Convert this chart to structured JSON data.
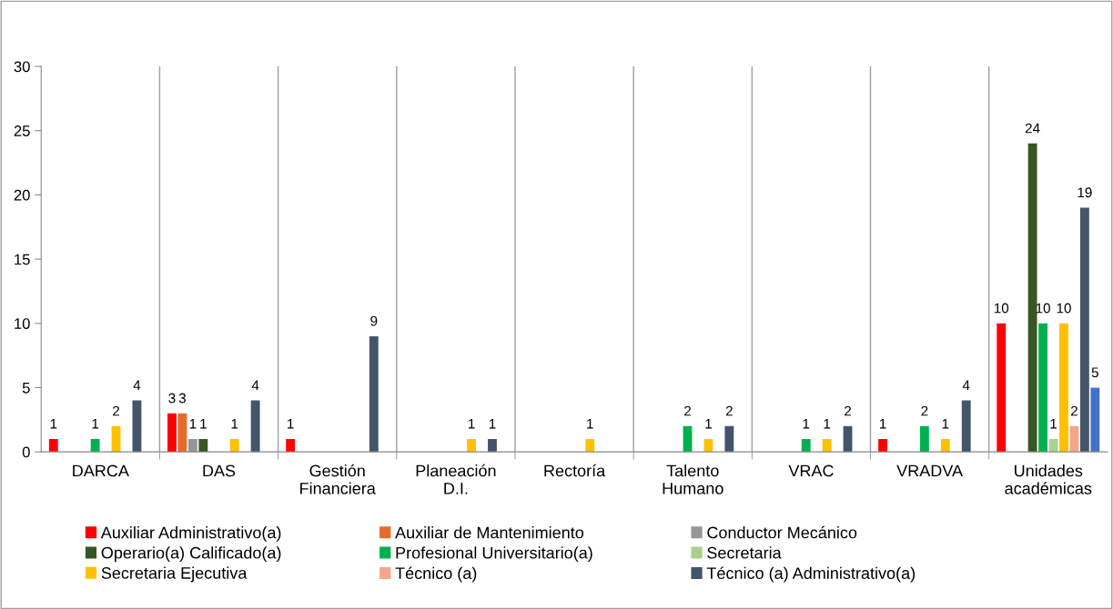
{
  "chart_data": {
    "type": "bar",
    "categories": [
      "DARCA",
      "DAS",
      "Gestión Financiera",
      "Planeación D.I.",
      "Rectoría",
      "Talento Humano",
      "VRAC",
      "VRADVA",
      "Unidades académicas"
    ],
    "series": [
      {
        "name": "Auxiliar Administrativo(a)",
        "color": "#ff0000",
        "values": [
          1,
          3,
          1,
          null,
          null,
          null,
          null,
          1,
          10
        ]
      },
      {
        "name": "Auxiliar de Mantenimiento",
        "color": "#e36c2a",
        "values": [
          null,
          3,
          null,
          null,
          null,
          null,
          null,
          null,
          null
        ]
      },
      {
        "name": "Conductor Mecánico",
        "color": "#969696",
        "values": [
          null,
          1,
          null,
          null,
          null,
          null,
          null,
          null,
          null
        ]
      },
      {
        "name": "Operario(a) Calificado(a)",
        "color": "#375623",
        "values": [
          null,
          1,
          null,
          null,
          null,
          null,
          null,
          null,
          24
        ]
      },
      {
        "name": "Profesional Universitario(a)",
        "color": "#00b050",
        "values": [
          1,
          null,
          null,
          null,
          null,
          2,
          1,
          2,
          10
        ]
      },
      {
        "name": "Secretaria",
        "color": "#a9d18e",
        "values": [
          null,
          null,
          null,
          null,
          null,
          null,
          null,
          null,
          1
        ]
      },
      {
        "name": "Secretaria Ejecutiva",
        "color": "#ffc000",
        "values": [
          2,
          1,
          null,
          1,
          1,
          1,
          1,
          1,
          10
        ]
      },
      {
        "name": "Técnico (a)",
        "color": "#f4a58a",
        "values": [
          null,
          null,
          null,
          null,
          null,
          null,
          null,
          null,
          2
        ]
      },
      {
        "name": "Técnico (a) Administrativo(a)",
        "color": "#44546a",
        "values": [
          4,
          4,
          9,
          1,
          null,
          2,
          2,
          4,
          19
        ]
      },
      {
        "color": "#4472c4",
        "values": [
          null,
          null,
          null,
          null,
          null,
          null,
          null,
          null,
          5
        ]
      }
    ],
    "ylim": [
      0,
      30
    ],
    "yticks": [
      0,
      5,
      10,
      15,
      20,
      25,
      30
    ],
    "grid": "x",
    "legend": "bottom",
    "data_labels": true
  }
}
